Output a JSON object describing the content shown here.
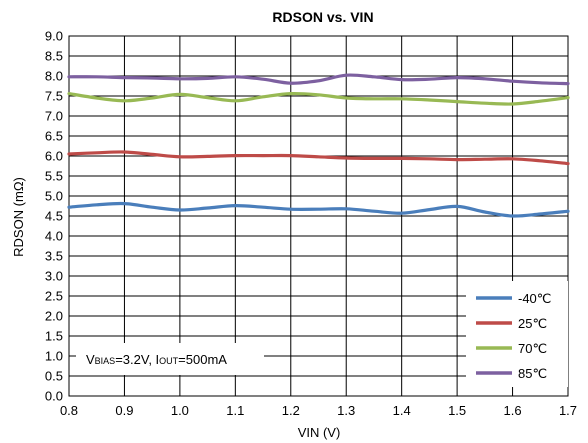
{
  "chart_data": {
    "type": "line",
    "title": "RDSON vs. VIN",
    "xlabel": "VIN (V)",
    "ylabel": "RDSON (mΩ)",
    "xlim": [
      0.8,
      1.7
    ],
    "ylim": [
      0.0,
      9.0
    ],
    "x_ticks": [
      "0.8",
      "0.9",
      "1.0",
      "1.1",
      "1.2",
      "1.3",
      "1.4",
      "1.5",
      "1.6",
      "1.7"
    ],
    "y_ticks": [
      "0.0",
      "0.5",
      "1.0",
      "1.5",
      "2.0",
      "2.5",
      "3.0",
      "3.5",
      "4.0",
      "4.5",
      "5.0",
      "5.5",
      "6.0",
      "6.5",
      "7.0",
      "7.5",
      "8.0",
      "8.5",
      "9.0"
    ],
    "grid": true,
    "legend_position": "bottom-right",
    "annotation": {
      "v": "V",
      "bias_sub": "BIAS",
      "mid": "=3.2V, I",
      "out_sub": "OUT",
      "end": "=500mA"
    },
    "x": [
      0.8,
      0.85,
      0.9,
      0.95,
      1.0,
      1.05,
      1.1,
      1.15,
      1.2,
      1.25,
      1.3,
      1.35,
      1.4,
      1.45,
      1.5,
      1.55,
      1.6,
      1.65,
      1.7
    ],
    "series": [
      {
        "name": "-40℃",
        "color": "#4a7ebb",
        "values": [
          4.72,
          4.78,
          4.81,
          4.72,
          4.65,
          4.7,
          4.76,
          4.72,
          4.67,
          4.67,
          4.68,
          4.62,
          4.57,
          4.66,
          4.74,
          4.6,
          4.5,
          4.55,
          4.62
        ]
      },
      {
        "name": "25℃",
        "color": "#be4b48",
        "values": [
          6.05,
          6.08,
          6.1,
          6.04,
          5.98,
          5.99,
          6.01,
          6.01,
          6.01,
          5.98,
          5.95,
          5.94,
          5.94,
          5.93,
          5.91,
          5.92,
          5.93,
          5.88,
          5.81
        ]
      },
      {
        "name": "70℃",
        "color": "#98b954",
        "values": [
          7.56,
          7.45,
          7.38,
          7.45,
          7.54,
          7.46,
          7.38,
          7.48,
          7.56,
          7.53,
          7.45,
          7.43,
          7.43,
          7.4,
          7.36,
          7.32,
          7.3,
          7.37,
          7.46
        ]
      },
      {
        "name": "85℃",
        "color": "#7d60a0",
        "values": [
          7.98,
          7.98,
          7.96,
          7.95,
          7.93,
          7.94,
          7.98,
          7.92,
          7.82,
          7.88,
          8.02,
          7.98,
          7.91,
          7.92,
          7.96,
          7.93,
          7.87,
          7.83,
          7.81
        ]
      }
    ]
  }
}
